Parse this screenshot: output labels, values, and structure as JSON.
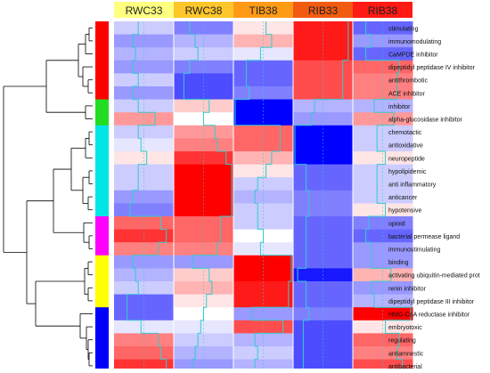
{
  "chart_data": {
    "type": "heatmap",
    "title": "",
    "xlabel": "",
    "ylabel": "",
    "columns": [
      "RWC33",
      "RWC38",
      "TIB38",
      "RIB33",
      "RIB38"
    ],
    "column_colors": [
      "#ffff80",
      "#ffc62b",
      "#ff9a17",
      "#f25a10",
      "#ff1a14"
    ],
    "rows": [
      "stimulating",
      "immunomodulating",
      "CaMPDE inhibitor",
      "dipeptidyl peptidase IV inhibitor",
      "antithrombotic",
      "ACE inhibitor",
      "inhibitor",
      "alpha-glucosidase inhibitor",
      "chemotactic",
      "antioxidative",
      "neuropeptide",
      "hypolipidemic",
      "anti inflammatory",
      "anticancer",
      "hypotensive",
      "opioid",
      "bacterial permease ligand",
      "immunostimulating",
      "binding",
      "activating ubiquitin-mediated prot",
      "renin inhibitor",
      "dipeptidyl peptidase III inhibitor",
      "HMG-CoA reductase inhibitor",
      "embryotoxic",
      "regulating",
      "antiamnestic",
      "antibacterial"
    ],
    "row_cluster_colors": [
      "#ff0000",
      "#ff0000",
      "#ff0000",
      "#ff0000",
      "#ff0000",
      "#ff0000",
      "#22dd22",
      "#22dd22",
      "#00e5e5",
      "#00e5e5",
      "#00e5e5",
      "#00e5e5",
      "#00e5e5",
      "#00e5e5",
      "#00e5e5",
      "#ff00ff",
      "#ff00ff",
      "#ff00ff",
      "#ffff00",
      "#ffff00",
      "#ffff00",
      "#ffff00",
      "#0000ff",
      "#0000ff",
      "#0000ff",
      "#0000ff",
      "#0000ff"
    ],
    "values": [
      [
        -0.2,
        -0.5,
        0.1,
        0.9,
        -0.6
      ],
      [
        -0.4,
        -0.3,
        0.3,
        0.9,
        -0.4
      ],
      [
        -0.3,
        -0.2,
        -0.1,
        0.9,
        -0.6
      ],
      [
        -0.4,
        -0.5,
        -0.6,
        0.7,
        0.6
      ],
      [
        -0.2,
        -0.7,
        -0.6,
        0.7,
        0.5
      ],
      [
        -0.4,
        -0.7,
        -0.5,
        0.7,
        0.5
      ],
      [
        -0.2,
        0.2,
        -1.0,
        -0.3,
        -0.3
      ],
      [
        0.4,
        0.0,
        -1.0,
        -0.4,
        0.4
      ],
      [
        -0.2,
        0.4,
        0.6,
        -1.0,
        -0.2
      ],
      [
        -0.1,
        0.5,
        0.6,
        -1.0,
        -0.2
      ],
      [
        0.1,
        0.8,
        0.3,
        -1.0,
        0.1
      ],
      [
        -0.2,
        1.0,
        0.1,
        -0.6,
        -0.2
      ],
      [
        -0.2,
        1.0,
        -0.2,
        -0.6,
        -0.2
      ],
      [
        -0.4,
        1.0,
        -0.3,
        -0.5,
        -0.2
      ],
      [
        -0.5,
        1.0,
        -0.2,
        -0.5,
        0.1
      ],
      [
        0.6,
        0.6,
        -0.2,
        -0.6,
        -0.5
      ],
      [
        0.8,
        0.6,
        0.0,
        -0.6,
        -0.6
      ],
      [
        0.5,
        0.5,
        -0.1,
        -0.6,
        -0.4
      ],
      [
        -0.4,
        -0.4,
        1.0,
        -0.6,
        -0.4
      ],
      [
        -0.3,
        0.2,
        1.0,
        -0.9,
        0.3
      ],
      [
        -0.2,
        0.3,
        0.9,
        -0.6,
        -0.4
      ],
      [
        -0.6,
        0.1,
        0.9,
        -0.6,
        -0.3
      ],
      [
        -0.6,
        0.0,
        -0.4,
        -0.5,
        1.0
      ],
      [
        -0.1,
        -0.1,
        0.7,
        -0.7,
        0.1
      ],
      [
        0.5,
        -0.2,
        -0.3,
        -0.7,
        0.6
      ],
      [
        0.6,
        -0.3,
        -0.2,
        -0.7,
        0.5
      ],
      [
        0.8,
        -0.4,
        -0.3,
        -0.7,
        0.7
      ]
    ],
    "value_range": [
      -1,
      1
    ],
    "color_scale": {
      "low": "#0000ff",
      "mid": "#ffffff",
      "high": "#ff0000"
    },
    "trace_line_color": "#33cccc"
  }
}
